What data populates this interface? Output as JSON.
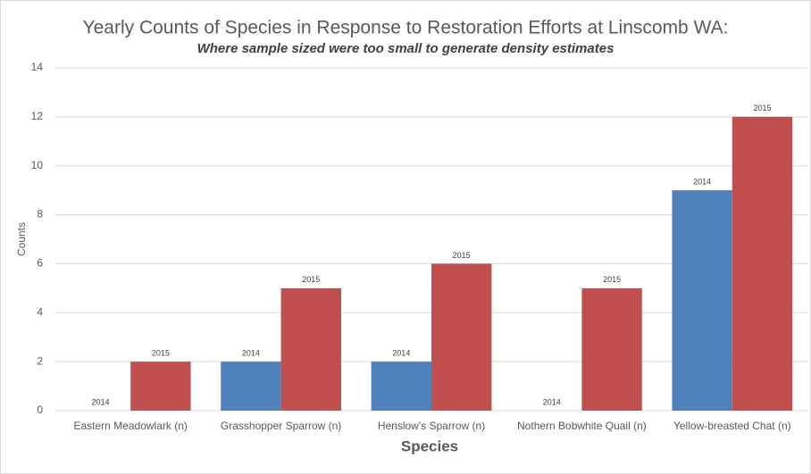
{
  "chart_data": {
    "type": "bar",
    "title": "Yearly Counts of Species in Response to Restoration Efforts at Linscomb WA:",
    "subtitle": "Where sample sized were too small to generate density estimates",
    "x_label": "Species",
    "y_label": "Counts",
    "categories": [
      "Eastern Meadowlark (n)",
      "Grasshopper Sparrow (n)",
      "Henslow's Sparrow (n)",
      "Nothern Bobwhite Quail (n)",
      "Yellow-breasted Chat (n)"
    ],
    "series": [
      {
        "name": "2014",
        "color": "#4f81bd",
        "values": [
          0,
          2,
          2,
          0,
          9
        ]
      },
      {
        "name": "2015",
        "color": "#c0504d",
        "values": [
          2,
          5,
          6,
          5,
          12
        ]
      }
    ],
    "ylim": [
      0,
      14
    ],
    "yticks": [
      0,
      2,
      4,
      6,
      8,
      10,
      12,
      14
    ],
    "grid": true
  }
}
